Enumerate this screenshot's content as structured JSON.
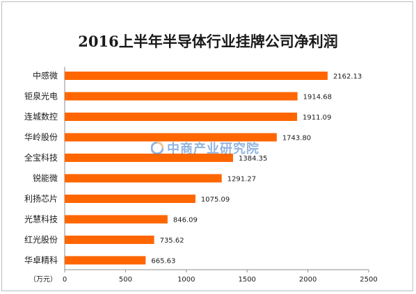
{
  "chart_data": {
    "type": "bar",
    "orientation": "horizontal",
    "title": "2016上半年半导体行业挂牌公司净利润",
    "unit_label": "（万元）",
    "categories": [
      "中感微",
      "钜泉光电",
      "连城数控",
      "华岭股份",
      "全宝科技",
      "锐能微",
      "利扬芯片",
      "光慧科技",
      "红光股份",
      "华卓精科"
    ],
    "values": [
      2162.13,
      1914.68,
      1911.09,
      1743.8,
      1384.35,
      1291.27,
      1075.09,
      846.09,
      735.62,
      665.63
    ],
    "value_labels": [
      "2162.13",
      "1914.68",
      "1911.09",
      "1743.80",
      "1384.35",
      "1291.27",
      "1075.09",
      "846.09",
      "735.62",
      "665.63"
    ],
    "xlim": [
      0,
      2500
    ],
    "xticks": [
      0,
      500,
      1000,
      1500,
      2000,
      2500
    ],
    "bar_color": "#ff6600",
    "grid": false
  },
  "watermark": {
    "text": "中商产业研究院",
    "color": "#3a78c8"
  }
}
